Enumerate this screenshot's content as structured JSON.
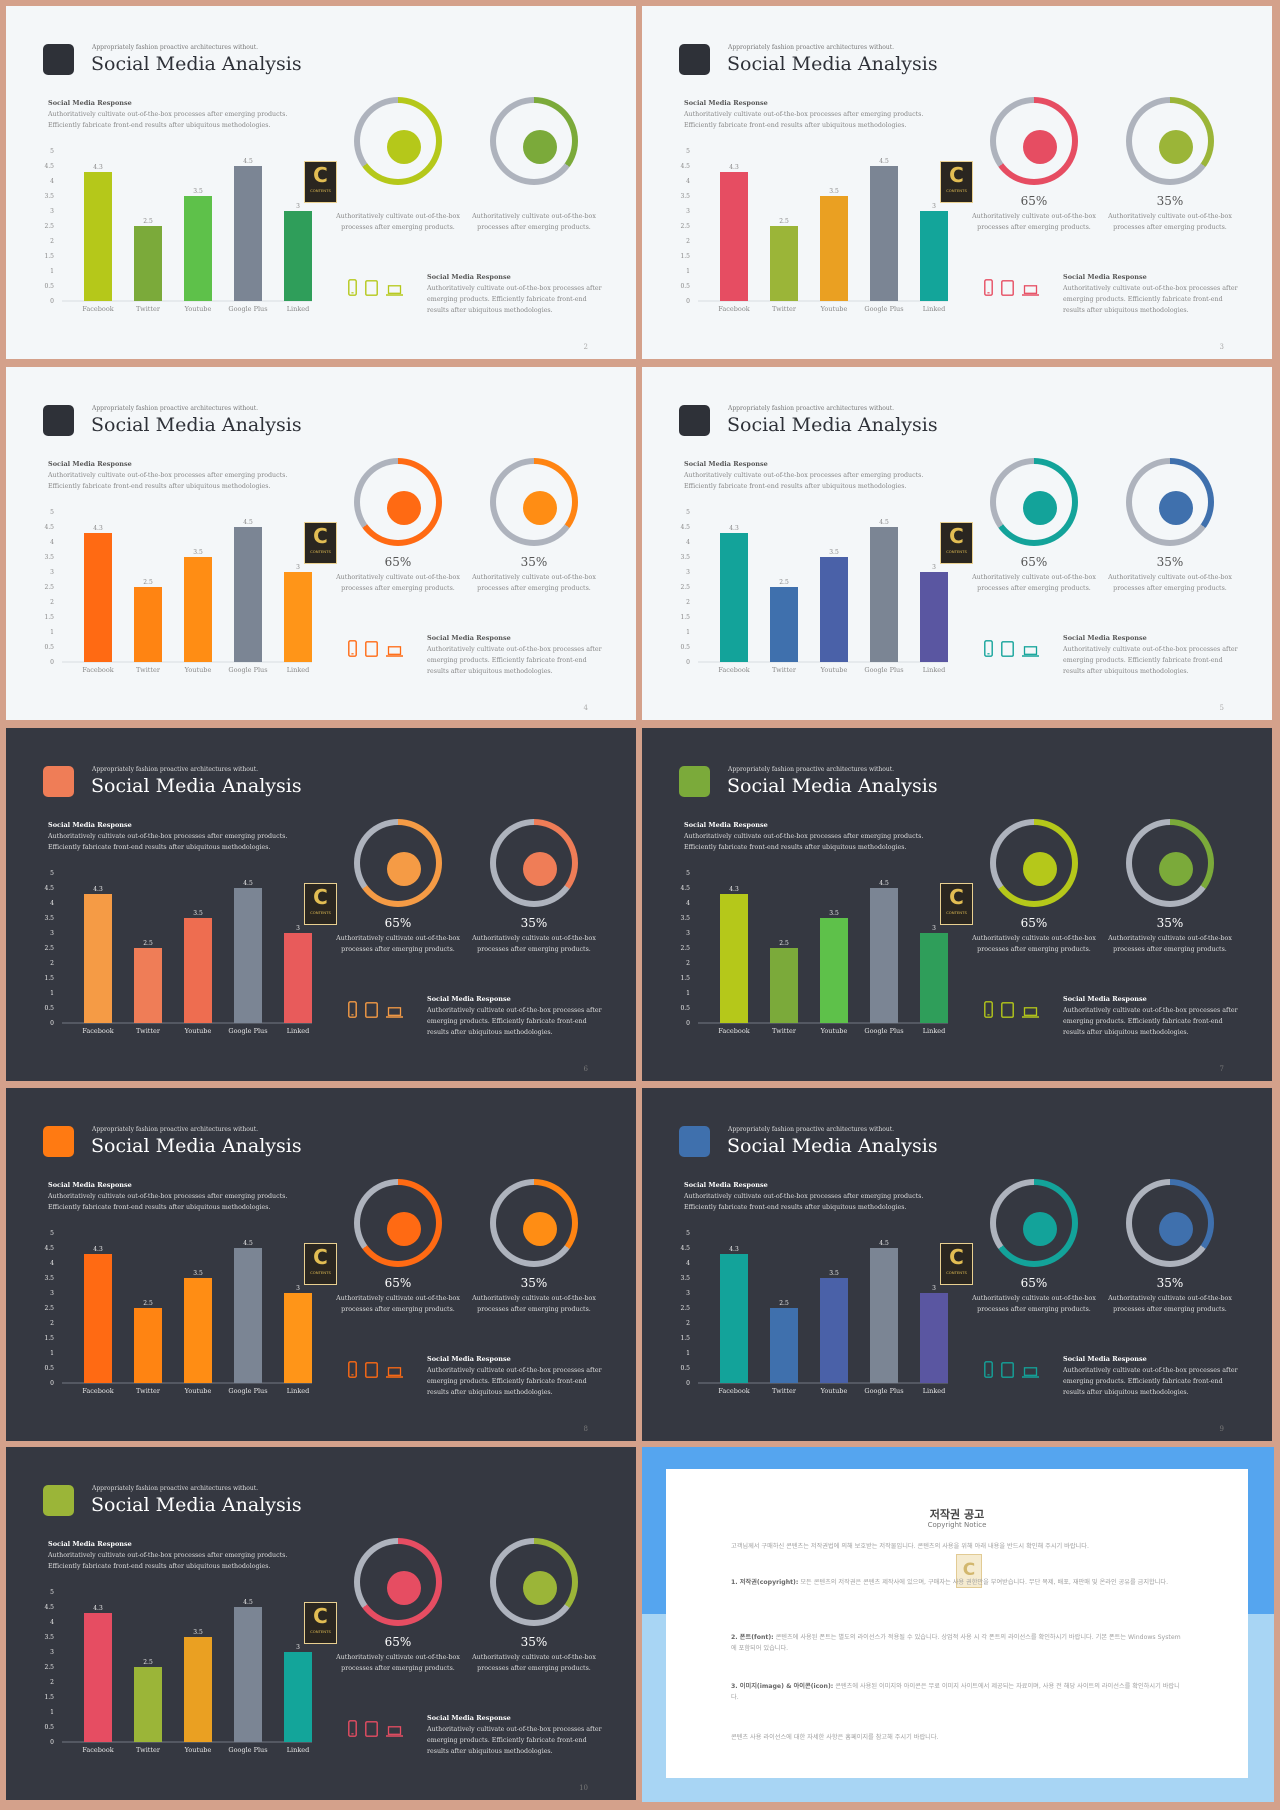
{
  "kicker": "Appropriately fashion proactive architectures without.",
  "title": "Social Media Analysis",
  "response_title": "Social Media Response",
  "response_desc": "Authoritatively cultivate out-of-the-box processes after emerging products. Efficiently fabricate front-end results after ubiquitous methodologies.",
  "percent1": "65%",
  "percent2": "35%",
  "percent_desc": "Authoritatively cultivate out-of-the-box processes after emerging products.",
  "response2_title": "Social Media Response",
  "response2_desc": "Authoritatively cultivate out-of-the-box processes after emerging products. Efficiently fabricate front-end results after ubiquitous methodologies.",
  "logo": {
    "letter": "C",
    "text": "CONTENTS"
  },
  "devices": [
    "phone-icon",
    "tablet-icon",
    "laptop-icon"
  ],
  "chart_data": {
    "type": "bar",
    "categories": [
      "Facebook",
      "Twitter",
      "Youtube",
      "Google Plus",
      "Linked"
    ],
    "values": [
      4.3,
      2.5,
      3.5,
      4.5,
      3
    ],
    "value_labels": [
      "4.3",
      "2.5",
      "3.5",
      "4.5",
      "3"
    ],
    "yticks": [
      "0",
      "0.5",
      "1",
      "1.5",
      "2",
      "2.5",
      "3",
      "3.5",
      "4",
      "4.5",
      "5"
    ],
    "ylim": [
      0,
      5
    ]
  },
  "slides": [
    {
      "page": "2",
      "theme": "light",
      "accent": "#2e3138",
      "bars": [
        "#b5c81a",
        "#7baa3a",
        "#5ec14a",
        "#7b8594",
        "#2f9e5a"
      ],
      "ring1": "#b5c81a",
      "ring2": "#7baa3a",
      "dot1": "#b5c81a",
      "dot2": "#7baa3a",
      "icon": "#b5c81a",
      "show_pct": false
    },
    {
      "page": "3",
      "theme": "light",
      "accent": "#2e3138",
      "bars": [
        "#e64d62",
        "#9bb538",
        "#eaa022",
        "#7b8594",
        "#13a59a"
      ],
      "ring1": "#e64d62",
      "ring2": "#9bb538",
      "dot1": "#e64d62",
      "dot2": "#9bb538",
      "icon": "#e64d62",
      "show_pct": true
    },
    {
      "page": "4",
      "theme": "light",
      "accent": "#2e3138",
      "bars": [
        "#ff6a13",
        "#ff8412",
        "#ff8d14",
        "#7b8594",
        "#ff9518"
      ],
      "ring1": "#ff6a13",
      "ring2": "#ff8412",
      "dot1": "#ff6a13",
      "dot2": "#ff8d14",
      "icon": "#ff6a13",
      "show_pct": true
    },
    {
      "page": "5",
      "theme": "light",
      "accent": "#2e3138",
      "bars": [
        "#13a39a",
        "#3f70ad",
        "#4a61a8",
        "#7b8594",
        "#5a56a1"
      ],
      "ring1": "#13a39a",
      "ring2": "#3f70ad",
      "dot1": "#13a39a",
      "dot2": "#3f70ad",
      "icon": "#13a39a",
      "show_pct": true
    },
    {
      "page": "6",
      "theme": "dark",
      "accent": "#ef7d57",
      "bars": [
        "#f59b45",
        "#ef7d57",
        "#ee6d50",
        "#7b8594",
        "#e85b5b"
      ],
      "ring1": "#f59b45",
      "ring2": "#ef7d57",
      "dot1": "#f59b45",
      "dot2": "#ef7d57",
      "icon": "#f59b45",
      "show_pct": true
    },
    {
      "page": "7",
      "theme": "dark",
      "accent": "#7baa3a",
      "bars": [
        "#b5c81a",
        "#7baa3a",
        "#5ec14a",
        "#7b8594",
        "#2f9e5a"
      ],
      "ring1": "#b5c81a",
      "ring2": "#7baa3a",
      "dot1": "#b5c81a",
      "dot2": "#7baa3a",
      "icon": "#b5c81a",
      "show_pct": true
    },
    {
      "page": "8",
      "theme": "dark",
      "accent": "#ff7a12",
      "bars": [
        "#ff6a13",
        "#ff8412",
        "#ff8d14",
        "#7b8594",
        "#ff9518"
      ],
      "ring1": "#ff6a13",
      "ring2": "#ff8412",
      "dot1": "#ff6a13",
      "dot2": "#ff8d14",
      "icon": "#ff6a13",
      "show_pct": true
    },
    {
      "page": "9",
      "theme": "dark",
      "accent": "#3f70ad",
      "bars": [
        "#13a39a",
        "#3f70ad",
        "#4a61a8",
        "#7b8594",
        "#5a56a1"
      ],
      "ring1": "#13a39a",
      "ring2": "#3f70ad",
      "dot1": "#13a39a",
      "dot2": "#3f70ad",
      "icon": "#13a39a",
      "show_pct": true
    },
    {
      "page": "10",
      "theme": "dark",
      "accent": "#9bb538",
      "bars": [
        "#e64d62",
        "#9bb538",
        "#eaa022",
        "#7b8594",
        "#13a59a"
      ],
      "ring1": "#e64d62",
      "ring2": "#9bb538",
      "dot1": "#e64d62",
      "dot2": "#9bb538",
      "icon": "#e64d62",
      "show_pct": true
    }
  ],
  "notice": {
    "title": "저작권 공고",
    "subtitle": "Copyright Notice",
    "intro": "고객님께서 구매하신 콘텐츠는 저작권법에 의해 보호받는 저작물입니다. 콘텐츠의 사용을 위해 아래 내용을 반드시 확인해 주시기 바랍니다.",
    "p1_head": "1. 저작권(copyright):",
    "p1": "모든 콘텐츠의 저작권은 콘텐츠 제작사에 있으며, 구매자는 사용 권한만을 부여받습니다. 무단 복제, 배포, 재판매 및 온라인 공유를 금지합니다.",
    "p2_head": "2. 폰트(font):",
    "p2": "콘텐츠에 사용된 폰트는 별도의 라이선스가 적용될 수 있습니다. 상업적 사용 시 각 폰트의 라이선스를 확인하시기 바랍니다. 기본 폰트는 Windows System에 포함되어 있습니다.",
    "p3_head": "3. 이미지(image) & 아이콘(icon):",
    "p3": "콘텐츠에 사용된 이미지와 아이콘은 무료 이미지 사이트에서 제공되는 자료이며, 사용 전 해당 사이트의 라이선스를 확인하시기 바랍니다.",
    "outro": "콘텐츠 사용 라이선스에 대한 자세한 사항은 홈페이지를 참고해 주시기 바랍니다."
  }
}
